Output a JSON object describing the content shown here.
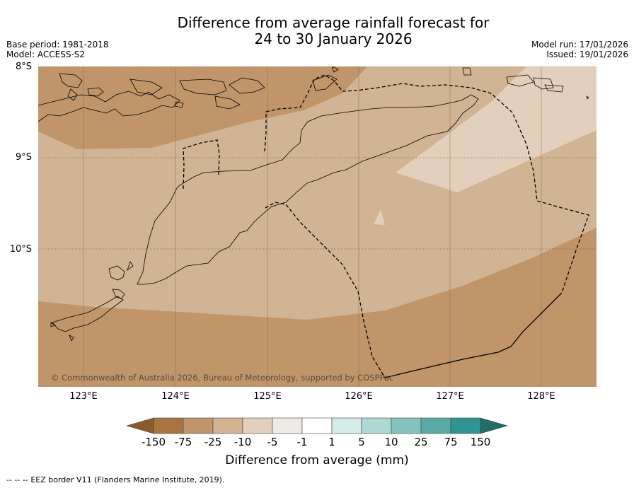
{
  "title": {
    "line1": "Difference from average rainfall forecast for",
    "line2": "24 to 30 January 2026"
  },
  "meta_left": {
    "base_period": "Base period: 1981-2018",
    "model": "Model: ACCESS-S2"
  },
  "meta_right": {
    "model_run": "Model run: 17/01/2026",
    "issued": "Issued: 19/01/2026"
  },
  "axes": {
    "lat_labels": [
      "8°S",
      "9°S",
      "10°S"
    ],
    "lon_labels": [
      "123°E",
      "124°E",
      "125°E",
      "126°E",
      "127°E",
      "128°E"
    ]
  },
  "copyright": "© Commonwealth of Australia 2026, Bureau of Meteorology, supported by COSPPac",
  "colorbar": {
    "labels": [
      "-150",
      "-75",
      "-25",
      "-10",
      "-5",
      "-1",
      "1",
      "5",
      "10",
      "25",
      "75",
      "150"
    ],
    "colors": [
      "#8b5a2b",
      "#a87440",
      "#c0956a",
      "#d3b392",
      "#e3d0bc",
      "#eeeae6",
      "#ffffff",
      "#d4ece8",
      "#aed8d4",
      "#84c2be",
      "#5aaaa6",
      "#2f9593",
      "#1f6e6b"
    ],
    "title": "Difference from average (mm)"
  },
  "footer": {
    "legend_symbol": "-- -- --",
    "legend_text": "EEZ border V11 (Flanders Marine Institute, 2019)."
  }
}
